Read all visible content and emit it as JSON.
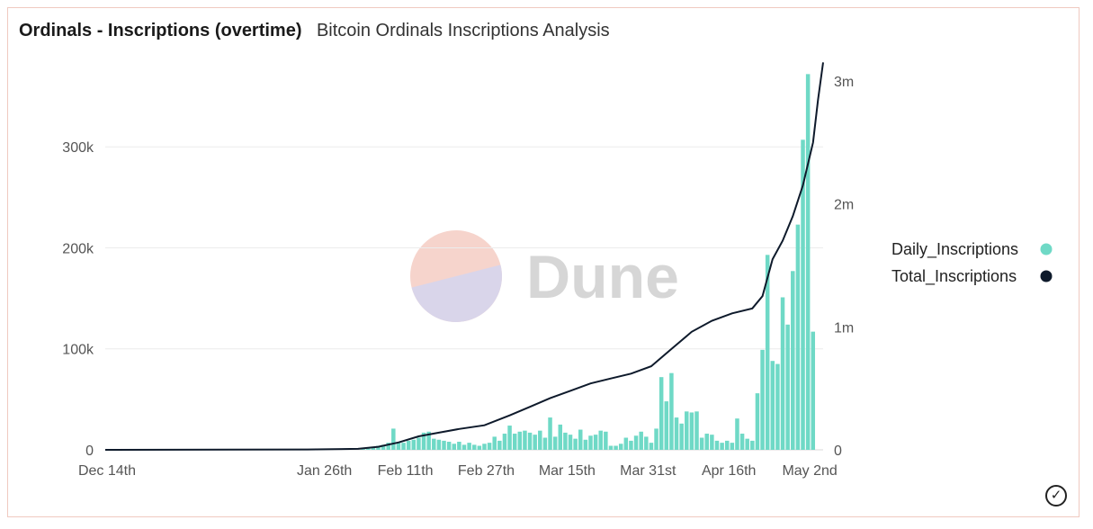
{
  "header": {
    "title": "Ordinals - Inscriptions (overtime)",
    "subtitle": "Bitcoin Ordinals Inscriptions Analysis"
  },
  "watermark": {
    "text": "Dune"
  },
  "colors": {
    "bar": "#6fd9c6",
    "line": "#0e1a2b",
    "grid": "#ececec",
    "border": "#f0c9c0",
    "watermark_top": "#f6d4cc",
    "watermark_bottom": "#d9d5ea",
    "watermark_text": "#d6d6d6"
  },
  "chart_data": {
    "type": "bar+line",
    "title": "Ordinals - Inscriptions (overtime)",
    "x_range": [
      "2022-12-14",
      "2023-05-03"
    ],
    "x_ticks": [
      "Dec 14th",
      "Jan 26th",
      "Feb 11th",
      "Feb 27th",
      "Mar 15th",
      "Mar 31st",
      "Apr 16th",
      "May 2nd"
    ],
    "x_tick_day_index": [
      0,
      43,
      59,
      75,
      91,
      107,
      123,
      139
    ],
    "y_left": {
      "ticks": [
        0,
        100000,
        200000,
        300000
      ],
      "tick_labels": [
        "0",
        "100k",
        "200k",
        "300k"
      ],
      "ylim": [
        0,
        375000
      ]
    },
    "y_right": {
      "ticks": [
        0,
        1000000,
        2000000,
        3000000
      ],
      "tick_labels": [
        "0",
        "1m",
        "2m",
        "3m"
      ],
      "ylim": [
        0,
        3080000
      ]
    },
    "legend": [
      {
        "name": "Daily_Inscriptions",
        "marker": "dot"
      },
      {
        "name": "Total_Inscriptions",
        "marker": "dot"
      }
    ],
    "bar_series": {
      "name": "Daily_Inscriptions",
      "start_day_index": 51,
      "values": [
        1000,
        2000,
        3000,
        4000,
        5000,
        7000,
        21000,
        8000,
        7000,
        9000,
        10000,
        12000,
        17000,
        18000,
        11000,
        10000,
        9000,
        8000,
        6000,
        8000,
        5000,
        7000,
        5000,
        4000,
        6000,
        7000,
        13000,
        9000,
        16000,
        24000,
        16000,
        18000,
        19000,
        17000,
        15000,
        19000,
        12000,
        32000,
        13000,
        25000,
        17000,
        15000,
        11000,
        20000,
        10000,
        14000,
        15000,
        19000,
        18000,
        4000,
        4000,
        6000,
        12000,
        9000,
        14000,
        18000,
        13000,
        7000,
        21000,
        72000,
        48000,
        76000,
        32000,
        26000,
        38000,
        37000,
        38000,
        12000,
        16000,
        15000,
        9000,
        7000,
        9000,
        7000,
        31000,
        16000,
        11000,
        9000,
        56000,
        99000,
        193000,
        88000,
        85000,
        151000,
        124000,
        177000,
        223000,
        307000,
        372000,
        117000
      ]
    },
    "line_series": {
      "name": "Total_Inscriptions",
      "points": [
        [
          0,
          0
        ],
        [
          40,
          3000
        ],
        [
          50,
          8000
        ],
        [
          54,
          25000
        ],
        [
          58,
          60000
        ],
        [
          62,
          110000
        ],
        [
          66,
          140000
        ],
        [
          70,
          170000
        ],
        [
          75,
          200000
        ],
        [
          80,
          280000
        ],
        [
          84,
          350000
        ],
        [
          88,
          420000
        ],
        [
          92,
          480000
        ],
        [
          96,
          540000
        ],
        [
          100,
          580000
        ],
        [
          104,
          620000
        ],
        [
          108,
          680000
        ],
        [
          112,
          820000
        ],
        [
          116,
          960000
        ],
        [
          120,
          1050000
        ],
        [
          124,
          1110000
        ],
        [
          128,
          1150000
        ],
        [
          130,
          1250000
        ],
        [
          132,
          1550000
        ],
        [
          134,
          1700000
        ],
        [
          136,
          1900000
        ],
        [
          138,
          2150000
        ],
        [
          140,
          2500000
        ],
        [
          141,
          2850000
        ],
        [
          142,
          3150000
        ]
      ]
    }
  }
}
